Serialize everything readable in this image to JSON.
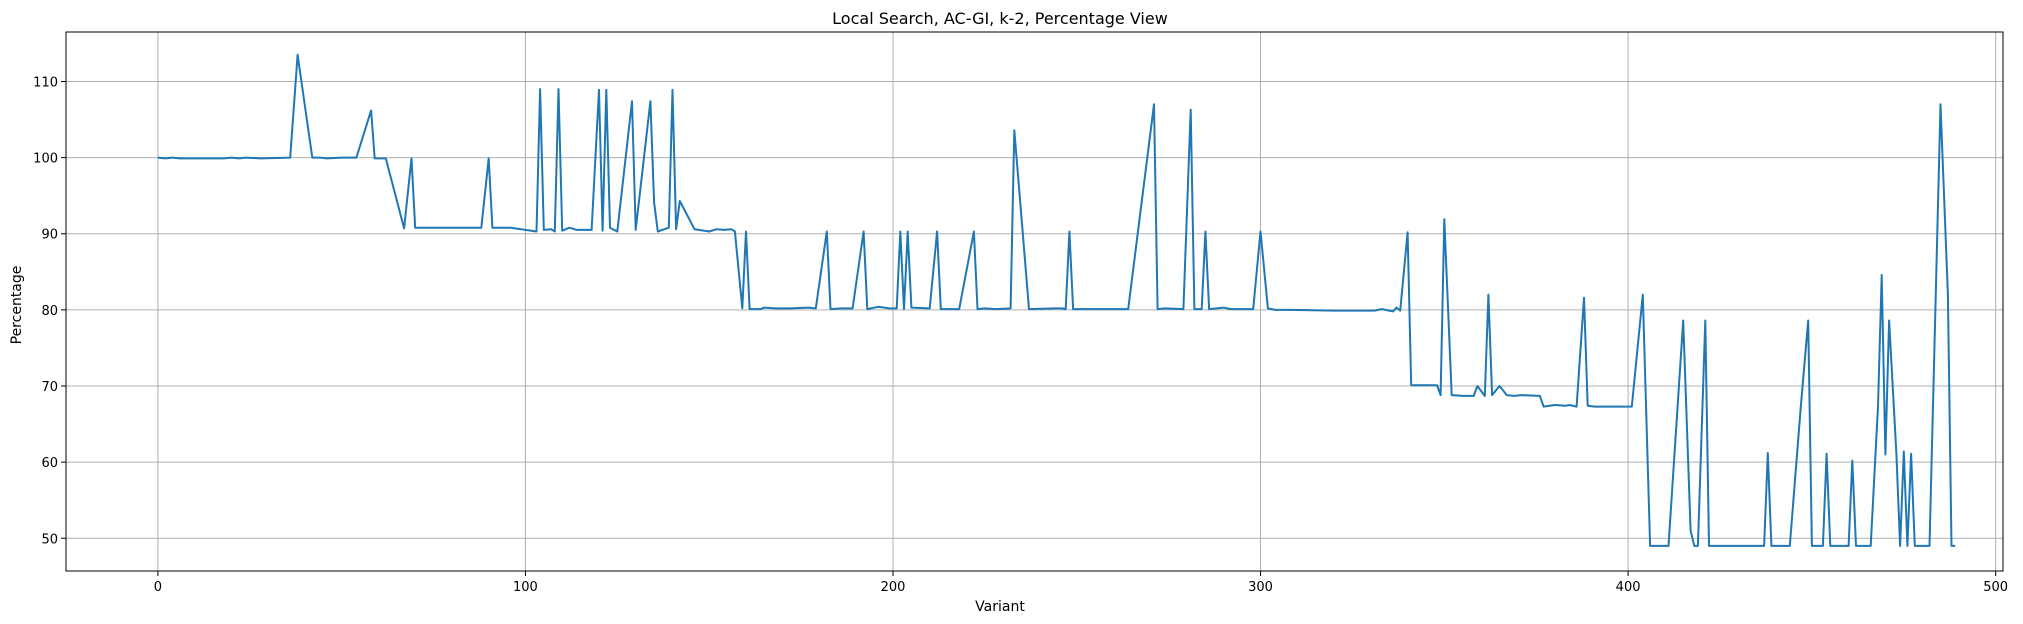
{
  "chart_data": {
    "type": "line",
    "title": "Local Search, AC-GI, k-2, Percentage View",
    "xlabel": "Variant",
    "ylabel": "Percentage",
    "xlim": [
      -25,
      502
    ],
    "ylim": [
      45.7,
      116.5
    ],
    "x_ticks": [
      0,
      100,
      200,
      300,
      400,
      500
    ],
    "y_ticks": [
      50,
      60,
      70,
      80,
      90,
      100,
      110
    ],
    "grid": true,
    "line_color": "#1f77b4",
    "series": [
      {
        "points": [
          [
            0,
            100
          ],
          [
            2,
            99.9
          ],
          [
            4,
            100
          ],
          [
            6,
            99.9
          ],
          [
            10,
            99.9
          ],
          [
            18,
            99.9
          ],
          [
            20,
            100
          ],
          [
            22,
            99.9
          ],
          [
            24,
            100
          ],
          [
            28,
            99.9
          ],
          [
            36,
            100
          ],
          [
            38,
            113.5
          ],
          [
            42,
            100
          ],
          [
            44,
            100
          ],
          [
            46,
            99.9
          ],
          [
            50,
            100
          ],
          [
            54,
            100
          ],
          [
            58,
            106.2
          ],
          [
            59,
            99.9
          ],
          [
            62,
            99.9
          ],
          [
            67,
            90.7
          ],
          [
            69,
            99.9
          ],
          [
            70,
            90.8
          ],
          [
            75,
            90.8
          ],
          [
            80,
            90.8
          ],
          [
            88,
            90.8
          ],
          [
            90,
            99.9
          ],
          [
            91,
            90.8
          ],
          [
            96,
            90.8
          ],
          [
            100,
            90.5
          ],
          [
            103,
            90.3
          ],
          [
            104,
            109
          ],
          [
            105,
            90.5
          ],
          [
            107,
            90.6
          ],
          [
            108,
            90.3
          ],
          [
            109,
            109
          ],
          [
            110,
            90.4
          ],
          [
            112,
            90.8
          ],
          [
            114,
            90.5
          ],
          [
            118,
            90.5
          ],
          [
            120,
            108.9
          ],
          [
            121,
            90.4
          ],
          [
            122,
            108.9
          ],
          [
            123,
            90.8
          ],
          [
            125,
            90.3
          ],
          [
            129,
            107.4
          ],
          [
            130,
            90.5
          ],
          [
            134,
            107.4
          ],
          [
            135,
            94.1
          ],
          [
            136,
            90.3
          ],
          [
            139,
            90.8
          ],
          [
            140,
            108.9
          ],
          [
            141,
            90.6
          ],
          [
            142,
            94.3
          ],
          [
            146,
            90.6
          ],
          [
            150,
            90.3
          ],
          [
            152,
            90.6
          ],
          [
            154,
            90.5
          ],
          [
            156,
            90.6
          ],
          [
            157,
            90.3
          ],
          [
            159,
            80.2
          ],
          [
            160,
            90.3
          ],
          [
            161,
            80.1
          ],
          [
            164,
            80.1
          ],
          [
            165,
            80.3
          ],
          [
            168,
            80.2
          ],
          [
            172,
            80.2
          ],
          [
            177,
            80.3
          ],
          [
            179,
            80.2
          ],
          [
            182,
            90.3
          ],
          [
            183,
            80.1
          ],
          [
            186,
            80.2
          ],
          [
            189,
            80.2
          ],
          [
            192,
            90.3
          ],
          [
            193,
            80.1
          ],
          [
            196,
            80.4
          ],
          [
            199,
            80.2
          ],
          [
            201,
            80.2
          ],
          [
            202,
            90.3
          ],
          [
            203,
            80.1
          ],
          [
            204,
            90.3
          ],
          [
            205,
            80.3
          ],
          [
            210,
            80.2
          ],
          [
            212,
            90.3
          ],
          [
            213,
            80.1
          ],
          [
            218,
            80.1
          ],
          [
            222,
            90.3
          ],
          [
            223,
            80.1
          ],
          [
            225,
            80.2
          ],
          [
            228,
            80.1
          ],
          [
            232,
            80.2
          ],
          [
            233,
            103.6
          ],
          [
            237,
            80.1
          ],
          [
            244,
            80.2
          ],
          [
            246,
            80.2
          ],
          [
            247,
            80.1
          ],
          [
            248,
            90.3
          ],
          [
            249,
            80.1
          ],
          [
            256,
            80.1
          ],
          [
            264,
            80.1
          ],
          [
            271,
            107
          ],
          [
            272,
            80.1
          ],
          [
            274,
            80.2
          ],
          [
            279,
            80.1
          ],
          [
            281,
            106.3
          ],
          [
            282,
            80.1
          ],
          [
            284,
            80.1
          ],
          [
            285,
            90.3
          ],
          [
            286,
            80.1
          ],
          [
            290,
            80.3
          ],
          [
            292,
            80.1
          ],
          [
            298,
            80.1
          ],
          [
            300,
            90.3
          ],
          [
            302,
            80.2
          ],
          [
            304,
            80
          ],
          [
            308,
            80
          ],
          [
            320,
            79.9
          ],
          [
            326,
            79.9
          ],
          [
            331,
            79.9
          ],
          [
            333,
            80.1
          ],
          [
            336,
            79.8
          ],
          [
            337,
            80.3
          ],
          [
            338,
            79.9
          ],
          [
            340,
            90.2
          ],
          [
            341,
            70.1
          ],
          [
            348,
            70.1
          ],
          [
            349,
            68.8
          ],
          [
            350,
            91.9
          ],
          [
            352,
            68.8
          ],
          [
            355,
            68.7
          ],
          [
            358,
            68.7
          ],
          [
            359,
            70
          ],
          [
            361,
            68.7
          ],
          [
            362,
            82
          ],
          [
            363,
            68.8
          ],
          [
            365,
            70
          ],
          [
            367,
            68.8
          ],
          [
            369,
            68.7
          ],
          [
            371,
            68.8
          ],
          [
            376,
            68.7
          ],
          [
            377,
            67.3
          ],
          [
            380,
            67.5
          ],
          [
            383,
            67.4
          ],
          [
            384,
            67.5
          ],
          [
            386,
            67.3
          ],
          [
            388,
            81.6
          ],
          [
            389,
            67.4
          ],
          [
            391,
            67.3
          ],
          [
            395,
            67.3
          ],
          [
            401,
            67.3
          ],
          [
            404,
            82
          ],
          [
            406,
            49
          ],
          [
            411,
            49
          ],
          [
            415,
            78.6
          ],
          [
            417,
            51
          ],
          [
            418,
            49
          ],
          [
            419,
            49
          ],
          [
            421,
            78.6
          ],
          [
            422,
            49
          ],
          [
            430,
            49
          ],
          [
            437,
            49
          ],
          [
            438,
            61.2
          ],
          [
            439,
            49
          ],
          [
            441,
            49
          ],
          [
            444,
            49
          ],
          [
            447,
            67.3
          ],
          [
            449,
            78.6
          ],
          [
            450,
            49
          ],
          [
            453,
            49
          ],
          [
            454,
            61.1
          ],
          [
            455,
            49
          ],
          [
            460,
            49
          ],
          [
            461,
            60.2
          ],
          [
            462,
            49
          ],
          [
            466,
            49
          ],
          [
            468,
            67.3
          ],
          [
            469,
            84.6
          ],
          [
            470,
            61
          ],
          [
            471,
            78.6
          ],
          [
            473,
            61.1
          ],
          [
            474,
            49
          ],
          [
            475,
            61.4
          ],
          [
            476,
            49
          ],
          [
            477,
            61.1
          ],
          [
            478,
            49
          ],
          [
            482,
            49
          ],
          [
            485,
            107
          ],
          [
            487,
            82
          ],
          [
            488,
            49
          ],
          [
            489,
            49
          ]
        ]
      }
    ]
  }
}
